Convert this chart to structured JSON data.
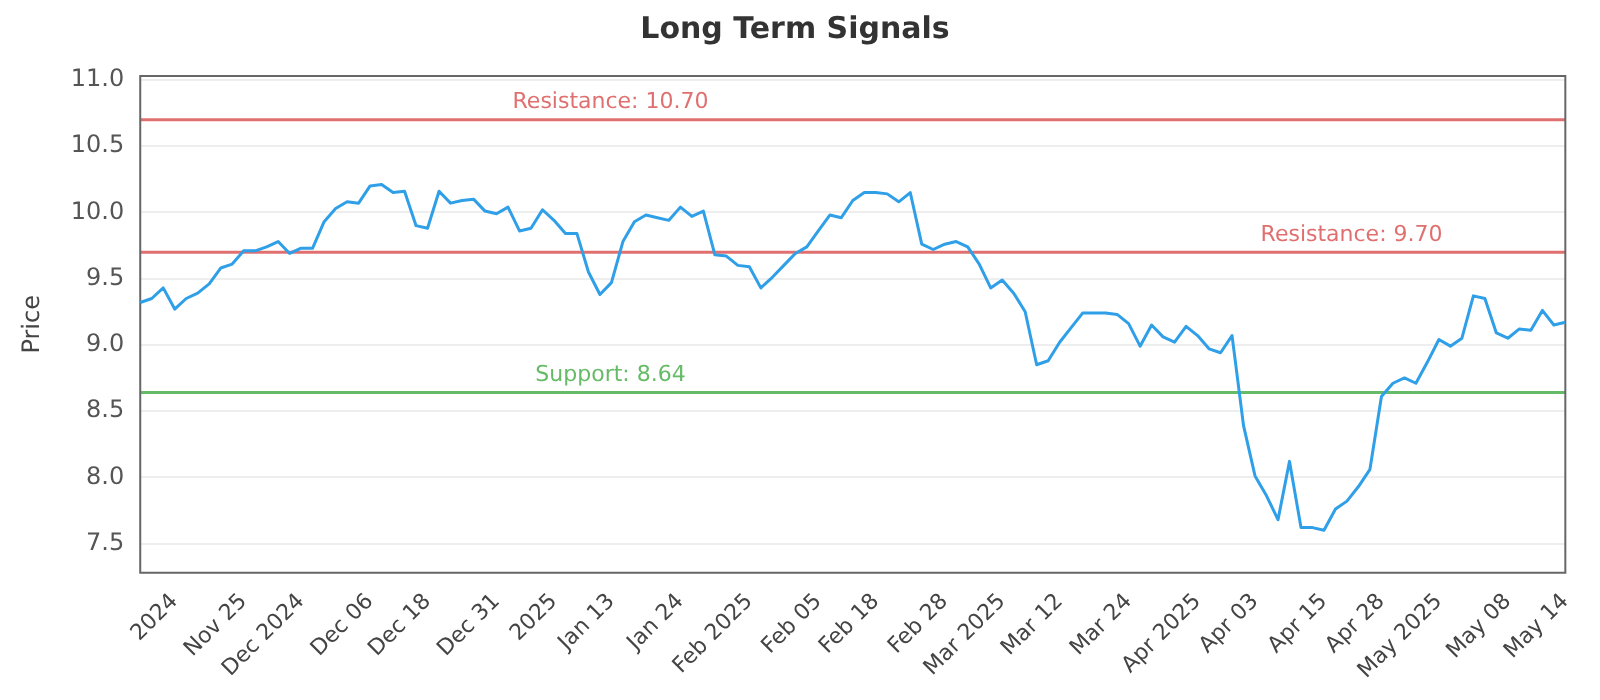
{
  "chart_data": {
    "type": "line",
    "title": "Long Term Signals",
    "ylabel": "Price",
    "categories": [
      null,
      null,
      null,
      "2024",
      null,
      null,
      null,
      null,
      null,
      "Nov 25",
      null,
      null,
      null,
      null,
      "Dec 2024",
      null,
      null,
      null,
      null,
      null,
      "Dec 06",
      null,
      null,
      null,
      null,
      "Dec 18",
      null,
      null,
      null,
      null,
      null,
      "Dec 31",
      null,
      null,
      null,
      null,
      "2025",
      null,
      null,
      null,
      null,
      "Jan 13",
      null,
      null,
      null,
      null,
      null,
      "Jan 24",
      null,
      null,
      null,
      null,
      null,
      "Feb 2025",
      null,
      null,
      null,
      null,
      null,
      "Feb 05",
      null,
      null,
      null,
      null,
      "Feb 18",
      null,
      null,
      null,
      null,
      null,
      "Feb 28",
      null,
      null,
      null,
      null,
      "Mar 2025",
      null,
      null,
      null,
      null,
      "Mar 12",
      null,
      null,
      null,
      null,
      null,
      "Mar 24",
      null,
      null,
      null,
      null,
      null,
      "Apr 2025",
      null,
      null,
      null,
      null,
      "Apr 03",
      null,
      null,
      null,
      null,
      null,
      "Apr 15",
      null,
      null,
      null,
      null,
      "Apr 28",
      null,
      null,
      null,
      null,
      "May 2025",
      null,
      null,
      null,
      null,
      null,
      "May 08",
      null,
      null,
      null,
      null,
      "May 14"
    ],
    "series": [
      {
        "color": "#2f9fe8",
        "values": [
          9.32,
          9.35,
          9.43,
          9.27,
          9.35,
          9.39,
          9.46,
          9.58,
          9.61,
          9.71,
          9.71,
          9.74,
          9.78,
          9.69,
          9.73,
          9.73,
          9.93,
          10.03,
          10.08,
          10.07,
          10.2,
          10.21,
          10.15,
          10.16,
          9.9,
          9.88,
          10.16,
          10.07,
          10.09,
          10.1,
          10.01,
          9.99,
          10.04,
          9.86,
          9.88,
          10.02,
          9.94,
          9.84,
          9.84,
          9.55,
          9.38,
          9.47,
          9.78,
          9.93,
          9.98,
          9.96,
          9.94,
          10.04,
          9.97,
          10.01,
          9.68,
          9.67,
          9.6,
          9.59,
          9.43,
          9.51,
          9.6,
          9.69,
          9.74,
          9.86,
          9.98,
          9.96,
          10.09,
          10.15,
          10.15,
          10.14,
          10.08,
          10.15,
          9.76,
          9.72,
          9.76,
          9.78,
          9.74,
          9.61,
          9.43,
          9.49,
          9.39,
          9.25,
          8.85,
          8.88,
          9.02,
          9.13,
          9.24,
          9.24,
          9.24,
          9.23,
          9.16,
          8.99,
          9.15,
          9.06,
          9.02,
          9.14,
          9.07,
          8.97,
          8.94,
          9.07,
          8.39,
          8.01,
          7.86,
          7.68,
          8.12,
          7.62,
          7.62,
          7.6,
          7.76,
          7.82,
          7.93,
          8.06,
          8.61,
          8.71,
          8.75,
          8.71,
          8.87,
          9.04,
          8.99,
          9.05,
          9.37,
          9.35,
          9.09,
          9.05,
          9.12,
          9.11,
          9.26,
          9.15,
          9.17
        ]
      }
    ],
    "ylim": [
      7.28,
      11.03
    ],
    "yticks": [
      {
        "value": 7.5,
        "label": "7.5"
      },
      {
        "value": 8,
        "label": "8.0"
      },
      {
        "value": 8.5,
        "label": "8.5"
      },
      {
        "value": 9,
        "label": "9.0"
      },
      {
        "value": 9.5,
        "label": "9.5"
      },
      {
        "value": 10,
        "label": "10.0"
      },
      {
        "value": 10.5,
        "label": "10.5"
      },
      {
        "value": 11,
        "label": "11.0"
      }
    ],
    "ref_lines": [
      {
        "axis": "y",
        "value": 10.7,
        "label": "Resistance: 10.70",
        "color": "#e07070"
      },
      {
        "axis": "y",
        "value": 9.7,
        "label": "Resistance: 9.70",
        "color": "#e07070"
      },
      {
        "axis": "y",
        "value": 8.64,
        "label": "Support: 8.64",
        "color": "#66bb66"
      }
    ],
    "grid": "y",
    "legend": false,
    "marker": "none",
    "line_style": "solid"
  }
}
